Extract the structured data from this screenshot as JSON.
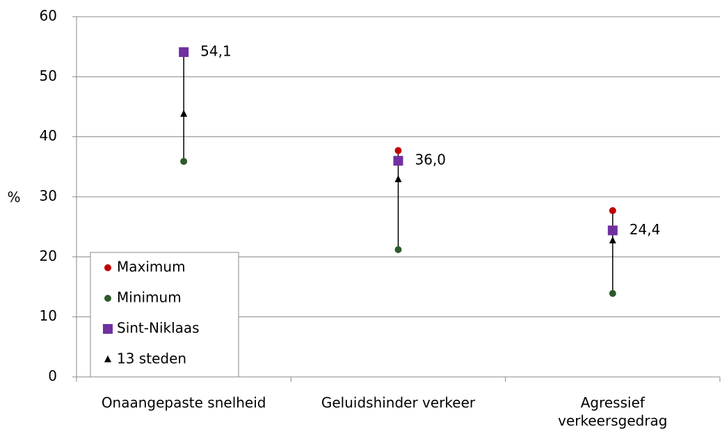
{
  "chart_data": {
    "type": "range_dot",
    "y_label": "%",
    "categories": [
      "Onaangepaste snelheid",
      "Geluidshinder verkeer",
      "Agressief verkeersgedrag"
    ],
    "ylim": [
      0,
      60
    ],
    "yticks": [
      0,
      10,
      20,
      30,
      40,
      50,
      60
    ],
    "grid": true,
    "legend": "lower left",
    "series": [
      {
        "name": "Maximum",
        "color": "#c00000",
        "marker": "circle",
        "values": [
          54.1,
          37.7,
          27.7
        ]
      },
      {
        "name": "Minimum",
        "color": "#2d5a2d",
        "marker": "circle",
        "values": [
          35.9,
          21.2,
          13.9
        ]
      },
      {
        "name": "Sint-Niklaas",
        "color": "#7030a0",
        "marker": "square",
        "values": [
          54.1,
          36.0,
          24.4
        ],
        "value_labels": [
          "54,1",
          "36,0",
          "24,4"
        ]
      },
      {
        "name": "13 steden",
        "color": "#000000",
        "marker": "triangle",
        "values": [
          43.8,
          32.9,
          22.7
        ]
      }
    ]
  }
}
